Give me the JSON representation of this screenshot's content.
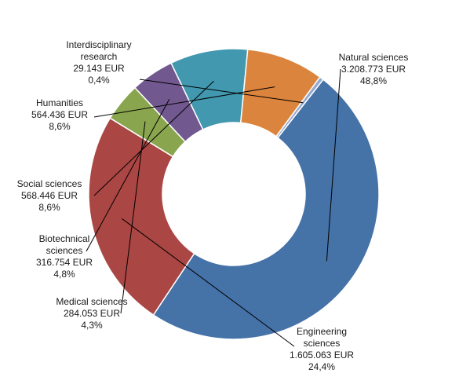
{
  "chart_data": {
    "type": "pie",
    "variant": "donut",
    "title": "",
    "legend": "none",
    "slices": [
      {
        "lines": [
          "Natural sciences"
        ],
        "amount": "3.208.773 EUR",
        "percent": "48,8%",
        "value": 3208773,
        "color": "#4572A7"
      },
      {
        "lines": [
          "Engineering",
          "sciences"
        ],
        "amount": "1.605.063 EUR",
        "percent": "24,4%",
        "value": 1605063,
        "color": "#AA4643"
      },
      {
        "lines": [
          "Medical sciences"
        ],
        "amount": "284.053 EUR",
        "percent": "4,3%",
        "value": 284053,
        "color": "#89A54E"
      },
      {
        "lines": [
          "Biotechnical",
          "sciences"
        ],
        "amount": "316.754 EUR",
        "percent": "4,8%",
        "value": 316754,
        "color": "#71588F"
      },
      {
        "lines": [
          "Social sciences"
        ],
        "amount": "568.446 EUR",
        "percent": "8,6%",
        "value": 568446,
        "color": "#4198AF"
      },
      {
        "lines": [
          "Humanities"
        ],
        "amount": "564.436 EUR",
        "percent": "8,6%",
        "value": 564436,
        "color": "#DB843D"
      },
      {
        "lines": [
          "Interdisciplinary",
          "research"
        ],
        "amount": "29.143 EUR",
        "percent": "0,4%",
        "value": 29143,
        "color": "#93A9CF"
      }
    ]
  }
}
